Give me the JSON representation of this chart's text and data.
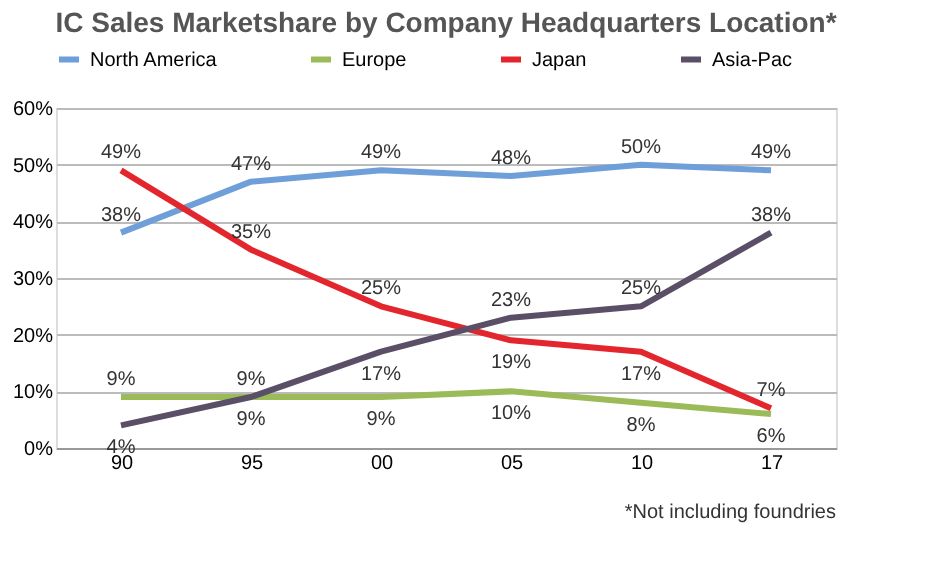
{
  "chart_data": {
    "type": "line",
    "title": "IC Sales Marketshare by Company Headquarters Location*",
    "categories": [
      "90",
      "95",
      "00",
      "05",
      "10",
      "17"
    ],
    "series": [
      {
        "name": "North America",
        "color": "#6f9fd8",
        "values": [
          38,
          47,
          49,
          48,
          50,
          49
        ],
        "value_labels": [
          "38%",
          "47%",
          "49%",
          "48%",
          "50%",
          "49%"
        ]
      },
      {
        "name": "Europe",
        "color": "#9bbb59",
        "values": [
          9,
          9,
          9,
          10,
          8,
          6
        ],
        "value_labels": [
          "9%",
          "9%",
          "9%",
          "10%",
          "8%",
          "6%"
        ]
      },
      {
        "name": "Japan",
        "color": "#e3262d",
        "values": [
          49,
          35,
          25,
          19,
          17,
          7
        ],
        "value_labels": [
          "49%",
          "35%",
          "25%",
          "19%",
          "17%",
          "7%"
        ]
      },
      {
        "name": "Asia-Pac",
        "color": "#5a4f66",
        "values": [
          4,
          9,
          17,
          23,
          25,
          38
        ],
        "value_labels": [
          "4%",
          "9%",
          "17%",
          "23%",
          "25%",
          "38%"
        ]
      }
    ],
    "ylim": [
      0,
      60
    ],
    "yticks": [
      {
        "value": 0,
        "label": "0%"
      },
      {
        "value": 10,
        "label": "10%"
      },
      {
        "value": 20,
        "label": "20%"
      },
      {
        "value": 30,
        "label": "30%"
      },
      {
        "value": 40,
        "label": "40%"
      },
      {
        "value": 50,
        "label": "50%"
      },
      {
        "value": 60,
        "label": "60%"
      }
    ],
    "grid": "y",
    "legend": "top",
    "marker": "none",
    "line_style": "solid",
    "annotations": [
      "*Not including foundries"
    ]
  }
}
